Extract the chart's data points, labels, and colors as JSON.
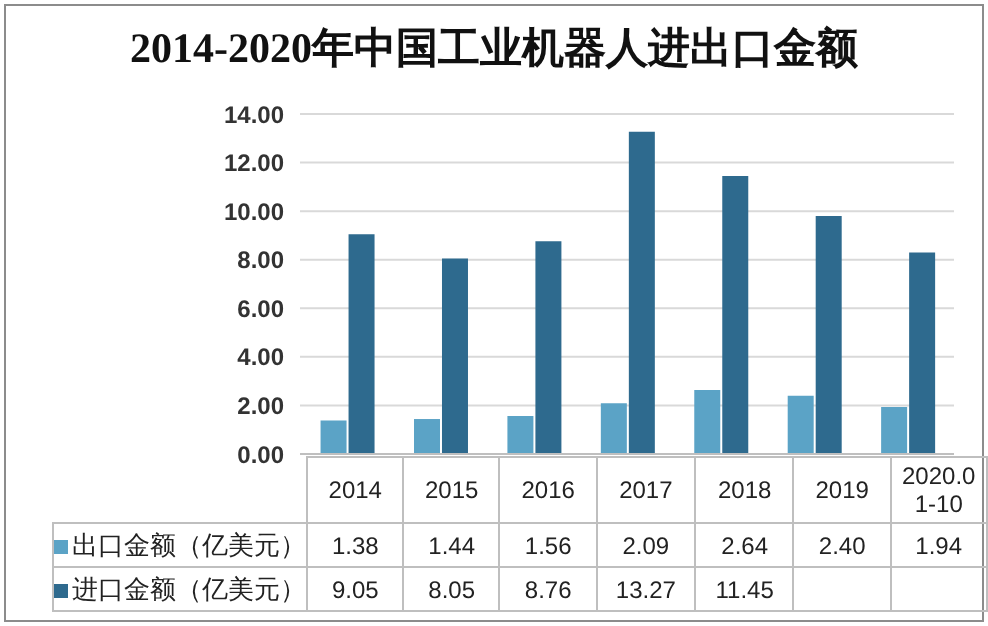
{
  "chart_data": {
    "type": "bar",
    "title": "2014-2020年中国工业机器人进出口金额",
    "categories": [
      "2014",
      "2015",
      "2016",
      "2017",
      "2018",
      "2019",
      "2020.01-10"
    ],
    "series": [
      {
        "name": "出口金额（亿美元）",
        "color": "#5ba3c6",
        "values": [
          1.38,
          1.44,
          1.56,
          2.09,
          2.64,
          2.4,
          1.94
        ],
        "value_labels": [
          "1.38",
          "1.44",
          "1.56",
          "2.09",
          "2.64",
          "2.40",
          "1.94"
        ]
      },
      {
        "name": "进口金额（亿美元）",
        "color": "#2e6a8e",
        "values": [
          9.05,
          8.05,
          8.76,
          13.27,
          11.45,
          9.8,
          8.3
        ],
        "value_labels": [
          "9.05",
          "8.05",
          "8.76",
          "13.27",
          "11.45",
          null,
          null
        ]
      }
    ],
    "ylim": [
      0,
      14
    ],
    "yticks": [
      {
        "value": 0,
        "label": "0.00"
      },
      {
        "value": 2,
        "label": "2.00"
      },
      {
        "value": 4,
        "label": "4.00"
      },
      {
        "value": 6,
        "label": "6.00"
      },
      {
        "value": 8,
        "label": "8.00"
      },
      {
        "value": 10,
        "label": "10.00"
      },
      {
        "value": 12,
        "label": "12.00"
      },
      {
        "value": 14,
        "label": "14.00"
      }
    ],
    "grid": "y",
    "legend": "bottom"
  }
}
